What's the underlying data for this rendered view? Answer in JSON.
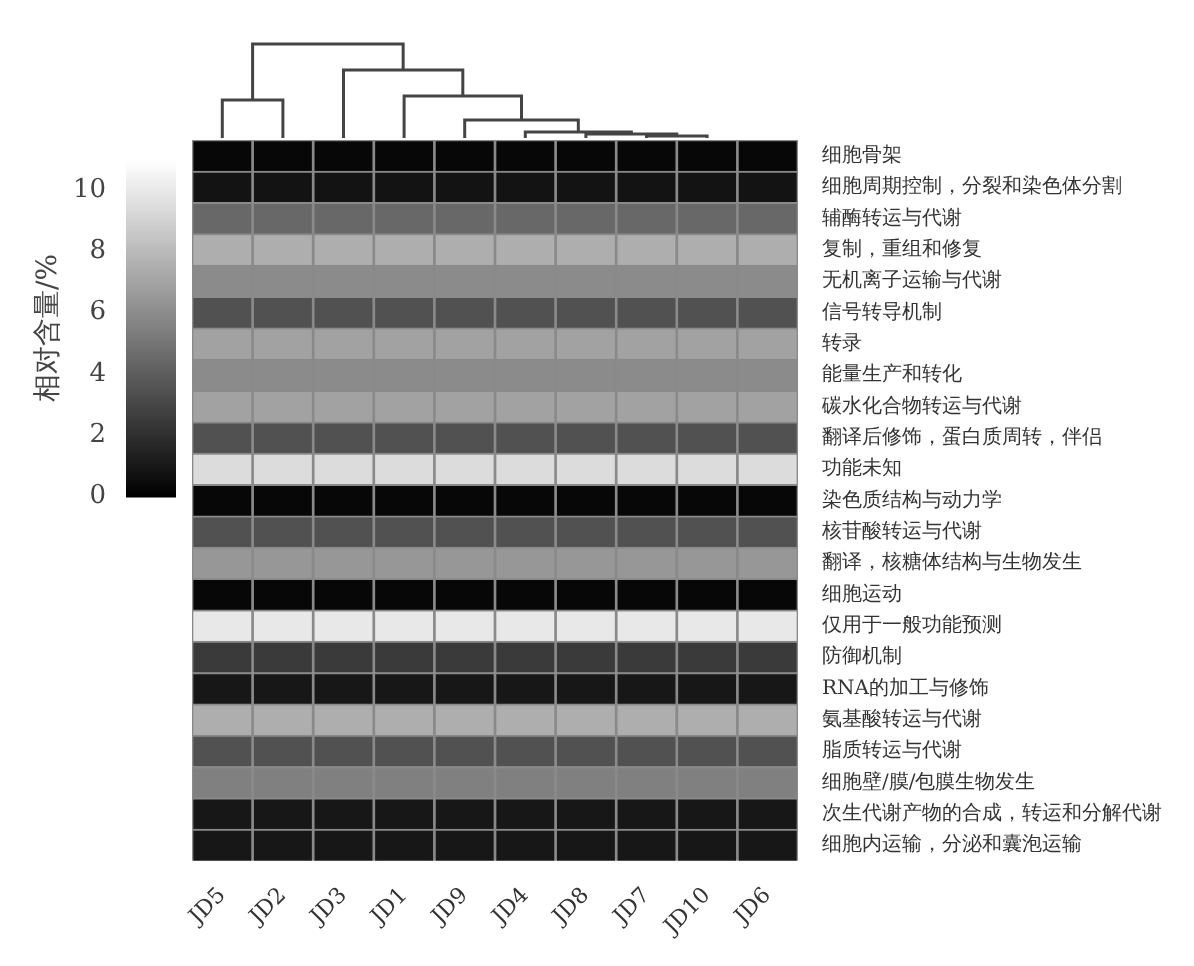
{
  "chart_data": {
    "type": "heatmap",
    "ylabel": "相对含量/%",
    "categories": [
      "JD5",
      "JD2",
      "JD3",
      "JD1",
      "JD9",
      "JD4",
      "JD8",
      "JD7",
      "JD10",
      "JD6"
    ],
    "y_categories": [
      "细胞骨架",
      "细胞周期控制，分裂和染色体分割",
      "辅酶转运与代谢",
      "复制，重组和修复",
      "无机离子运输与代谢",
      "信号转导机制",
      "转录",
      "能量生产和转化",
      "碳水化合物转运与代谢",
      "翻译后修饰，蛋白质周转，伴侣",
      "功能未知",
      "染色质结构与动力学",
      "核苷酸转运与代谢",
      "翻译，核糖体结构与生物发生",
      "细胞运动",
      "仅用于一般功能预测",
      "防御机制",
      "RNA的加工与修饰",
      "氨基酸转运与代谢",
      "脂质转运与代谢",
      "细胞壁/膜/包膜生物发生",
      "次生代谢产物的合成，转运和分解代谢",
      "细胞内运输，分泌和囊泡运输"
    ],
    "cells": [
      [
        0.3,
        0.3,
        0.3,
        0.3,
        0.3,
        0.3,
        0.3,
        0.3,
        0.3,
        0.3
      ],
      [
        0.8,
        0.8,
        0.8,
        0.8,
        0.8,
        0.8,
        0.8,
        0.8,
        0.8,
        0.8
      ],
      [
        4.5,
        4.5,
        4.5,
        4.5,
        4.5,
        4.5,
        4.5,
        4.5,
        4.5,
        4.5
      ],
      [
        7.5,
        7.5,
        7.5,
        7.5,
        7.5,
        7.5,
        7.5,
        7.5,
        7.5,
        7.5
      ],
      [
        6,
        6,
        6,
        6,
        6,
        6,
        6,
        6,
        6,
        6
      ],
      [
        3.5,
        3.5,
        3.5,
        3.5,
        3.5,
        3.5,
        3.5,
        3.5,
        3.5,
        3.5
      ],
      [
        7,
        7,
        7,
        7,
        7,
        7,
        7,
        7,
        7,
        7
      ],
      [
        6,
        6,
        6,
        6,
        6,
        6,
        6,
        6,
        6,
        6
      ],
      [
        7,
        7,
        7,
        7,
        7,
        7,
        7,
        7,
        7,
        7
      ],
      [
        3.5,
        3.5,
        3.5,
        3.5,
        3.5,
        3.5,
        3.5,
        3.5,
        3.5,
        3.5
      ],
      [
        9.5,
        9.5,
        9.5,
        9.5,
        9.5,
        9.5,
        9.5,
        9.5,
        9.5,
        9.5
      ],
      [
        0.3,
        0.3,
        0.3,
        0.3,
        0.3,
        0.3,
        0.3,
        0.3,
        0.3,
        0.3
      ],
      [
        3.5,
        3.5,
        3.5,
        3.5,
        3.5,
        3.5,
        3.5,
        3.5,
        3.5,
        3.5
      ],
      [
        6.5,
        6.5,
        6.5,
        6.5,
        6.5,
        6.5,
        6.5,
        6.5,
        6.5,
        6.5
      ],
      [
        0.3,
        0.3,
        0.3,
        0.3,
        0.3,
        0.3,
        0.3,
        0.3,
        0.3,
        0.3
      ],
      [
        10,
        10,
        10,
        10,
        10,
        10,
        10,
        10,
        10,
        10
      ],
      [
        2.5,
        2.5,
        2.5,
        2.5,
        2.5,
        2.5,
        2.5,
        2.5,
        2.5,
        2.5
      ],
      [
        1,
        1,
        1,
        1,
        1,
        1,
        1,
        1,
        1,
        1
      ],
      [
        7.5,
        7.5,
        7.5,
        7.5,
        7.5,
        7.5,
        7.5,
        7.5,
        7.5,
        7.5
      ],
      [
        3.5,
        3.5,
        3.5,
        3.5,
        3.5,
        3.5,
        3.5,
        3.5,
        3.5,
        3.5
      ],
      [
        5.5,
        5.5,
        5.5,
        5.5,
        5.5,
        5.5,
        5.5,
        5.5,
        5.5,
        5.5
      ],
      [
        1,
        1,
        1,
        1,
        1,
        1,
        1,
        1,
        1,
        1
      ],
      [
        1,
        1,
        1,
        1,
        1,
        1,
        1,
        1,
        1,
        1
      ]
    ],
    "clim": [
      0,
      11
    ],
    "cticks": [
      0,
      2,
      4,
      6,
      8,
      10
    ]
  }
}
